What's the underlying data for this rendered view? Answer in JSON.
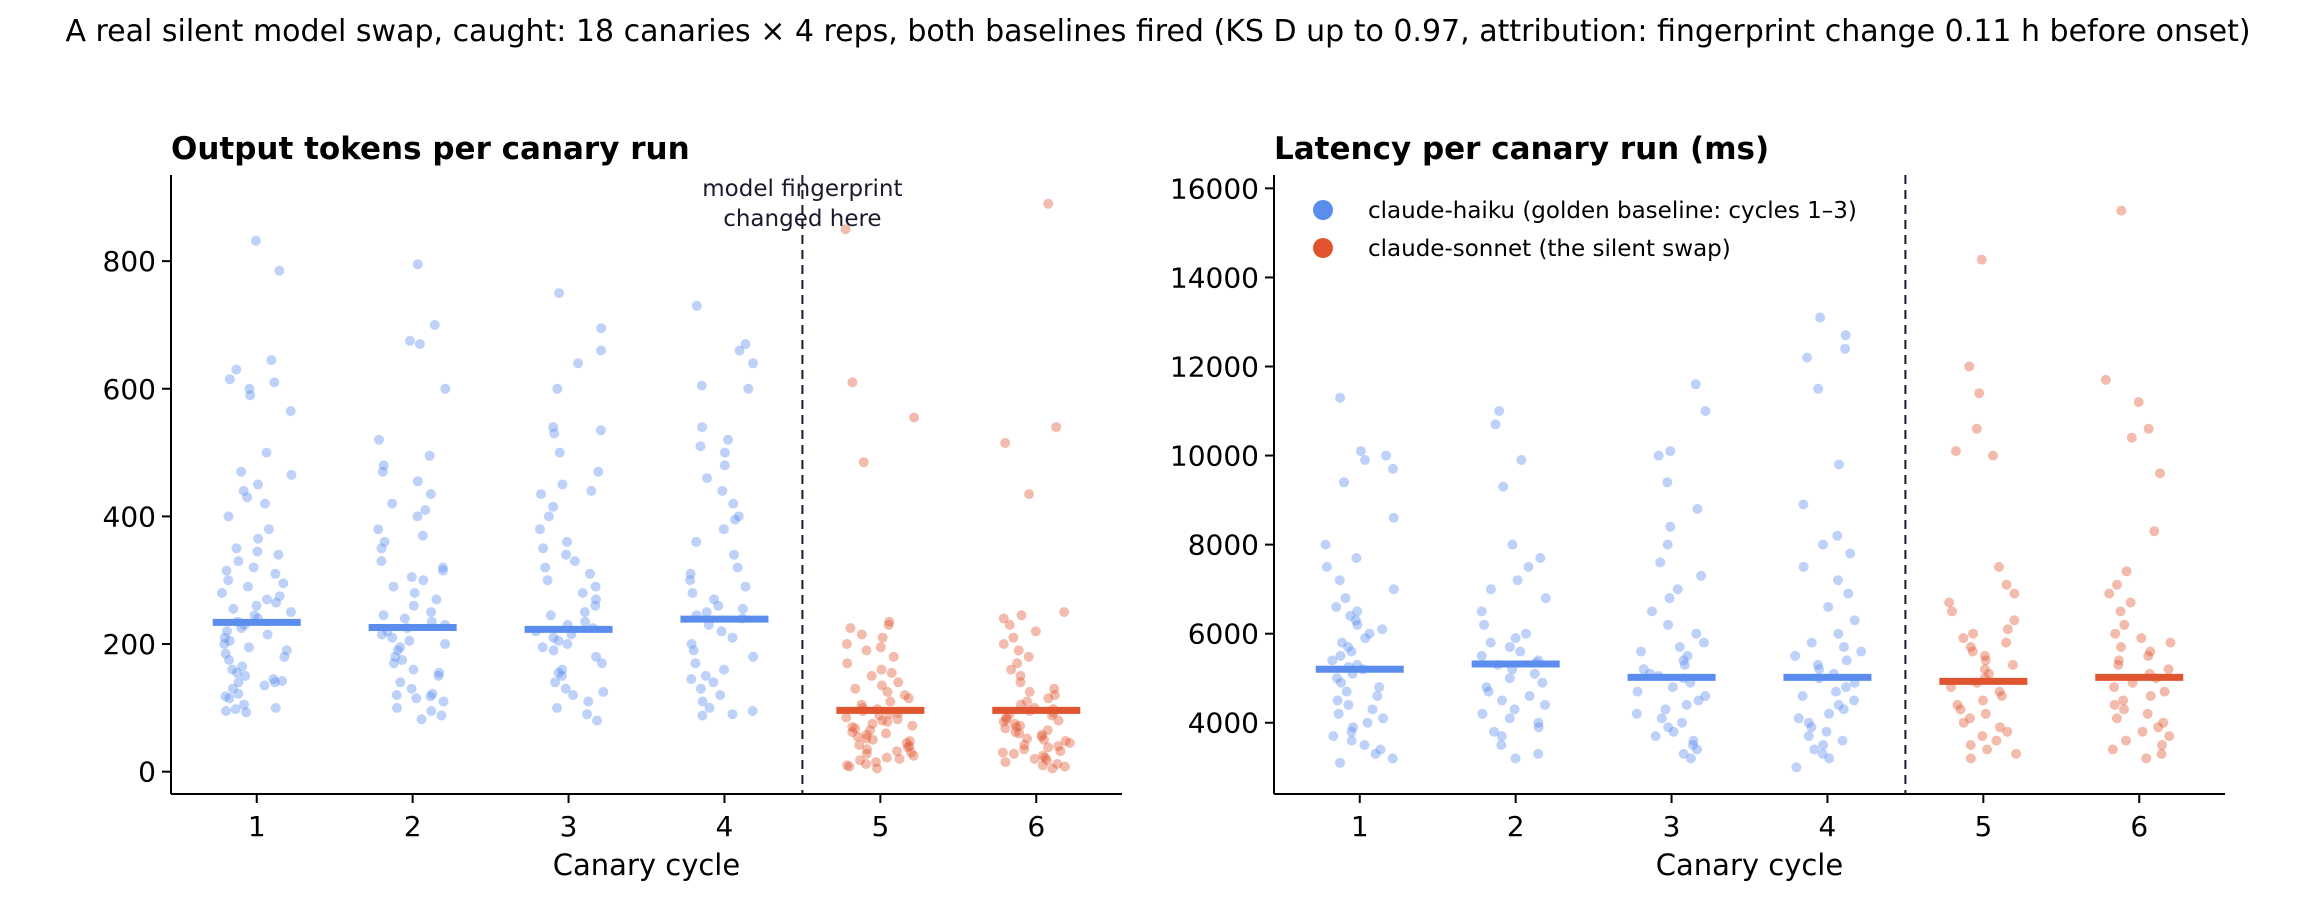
{
  "suptitle": "A real silent model swap, caught: 18 canaries × 4 reps, both baselines fired (KS D up to 0.97, attribution: fingerprint change 0.11 h before onset)",
  "colors": {
    "haiku": "#5b8def",
    "sonnet": "#e0552f",
    "axis": "#000000",
    "vline": "#1a1a2e"
  },
  "chart_data": [
    {
      "type": "scatter",
      "title": "Output tokens per canary run",
      "xlabel": "Canary cycle",
      "ylabel": "",
      "xlim": [
        0.45,
        6.55
      ],
      "ylim": [
        -35,
        935
      ],
      "x_ticks": [
        1,
        2,
        3,
        4,
        5,
        6
      ],
      "y_ticks": [
        0,
        200,
        400,
        600,
        800
      ],
      "change_x": 4.5,
      "annotation": "model fingerprint\nchanged here",
      "series": [
        {
          "name": "claude-haiku (golden baseline: cycles 1–3)",
          "color": "#5b8def",
          "cycles": [
            1,
            2,
            3,
            4
          ],
          "medians": [
            234,
            226,
            223,
            239
          ],
          "points": [
            [
              93,
              95,
              98,
              100,
              105,
              115,
              118,
              122,
              130,
              135,
              140,
              140,
              142,
              145,
              150,
              155,
              160,
              165,
              175,
              180,
              185,
              190,
              195,
              200,
              205,
              210,
              215,
              220,
              225,
              230,
              235,
              240,
              245,
              250,
              255,
              260,
              265,
              270,
              275,
              280,
              290,
              295,
              300,
              310,
              315,
              320,
              330,
              340,
              345,
              350,
              365,
              380,
              400,
              420,
              430,
              440,
              450,
              465,
              470,
              500,
              565,
              590,
              600,
              610,
              615,
              630,
              645,
              785,
              832
            ],
            [
              82,
              88,
              95,
              100,
              110,
              115,
              118,
              120,
              122,
              130,
              140,
              150,
              155,
              160,
              170,
              175,
              180,
              190,
              195,
              200,
              205,
              210,
              215,
              220,
              225,
              230,
              235,
              240,
              245,
              250,
              260,
              270,
              280,
              290,
              300,
              305,
              315,
              320,
              330,
              350,
              360,
              370,
              380,
              400,
              410,
              420,
              435,
              455,
              470,
              480,
              495,
              520,
              600,
              670,
              675,
              700,
              795
            ],
            [
              80,
              90,
              100,
              110,
              120,
              125,
              130,
              140,
              150,
              155,
              160,
              170,
              180,
              190,
              195,
              200,
              205,
              210,
              215,
              220,
              225,
              230,
              235,
              245,
              250,
              260,
              270,
              280,
              290,
              300,
              310,
              320,
              330,
              340,
              350,
              360,
              380,
              400,
              415,
              435,
              440,
              450,
              470,
              500,
              530,
              535,
              540,
              600,
              640,
              660,
              695,
              750
            ],
            [
              88,
              90,
              95,
              100,
              110,
              120,
              130,
              140,
              145,
              150,
              160,
              170,
              180,
              190,
              200,
              210,
              220,
              230,
              240,
              245,
              250,
              255,
              260,
              270,
              280,
              290,
              300,
              310,
              320,
              340,
              360,
              380,
              395,
              400,
              420,
              440,
              460,
              480,
              500,
              510,
              520,
              540,
              600,
              605,
              640,
              660,
              670,
              730
            ]
          ]
        },
        {
          "name": "claude-sonnet (the silent swap)",
          "color": "#e0552f",
          "cycles": [
            5,
            6
          ],
          "medians": [
            96,
            96
          ],
          "points": [
            [
              5,
              8,
              10,
              12,
              15,
              18,
              20,
              22,
              25,
              28,
              30,
              32,
              35,
              38,
              40,
              42,
              45,
              48,
              50,
              52,
              55,
              58,
              60,
              62,
              65,
              68,
              70,
              72,
              75,
              78,
              80,
              82,
              85,
              88,
              90,
              92,
              95,
              98,
              100,
              105,
              110,
              115,
              120,
              125,
              130,
              135,
              140,
              150,
              155,
              160,
              170,
              180,
              190,
              195,
              200,
              210,
              215,
              225,
              230,
              235,
              485,
              555,
              610,
              850
            ],
            [
              5,
              8,
              10,
              12,
              15,
              18,
              20,
              22,
              25,
              28,
              30,
              32,
              35,
              38,
              40,
              42,
              45,
              48,
              50,
              52,
              55,
              58,
              60,
              62,
              65,
              68,
              70,
              72,
              75,
              78,
              80,
              82,
              85,
              88,
              90,
              92,
              95,
              98,
              100,
              105,
              110,
              115,
              120,
              125,
              130,
              140,
              150,
              160,
              170,
              180,
              190,
              200,
              210,
              220,
              230,
              240,
              245,
              250,
              435,
              515,
              540,
              890
            ]
          ]
        }
      ]
    },
    {
      "type": "scatter",
      "title": "Latency per canary run (ms)",
      "xlabel": "Canary cycle",
      "ylabel": "",
      "xlim": [
        0.45,
        6.55
      ],
      "ylim": [
        2400,
        16300
      ],
      "x_ticks": [
        1,
        2,
        3,
        4,
        5,
        6
      ],
      "y_ticks": [
        4000,
        6000,
        8000,
        10000,
        12000,
        14000,
        16000
      ],
      "change_x": 4.5,
      "legend_loc": "top-left",
      "series": [
        {
          "name": "claude-haiku (golden baseline: cycles 1–3)",
          "color": "#5b8def",
          "cycles": [
            1,
            2,
            3,
            4
          ],
          "medians": [
            5200,
            5320,
            5020,
            5020
          ],
          "points": [
            [
              3100,
              3200,
              3300,
              3400,
              3500,
              3600,
              3700,
              3800,
              3900,
              4000,
              4100,
              4200,
              4300,
              4400,
              4500,
              4600,
              4700,
              4800,
              4900,
              5000,
              5100,
              5200,
              5250,
              5300,
              5400,
              5500,
              5600,
              5700,
              5800,
              5900,
              6000,
              6100,
              6200,
              6300,
              6400,
              6500,
              6600,
              6800,
              7000,
              7200,
              7500,
              7700,
              8000,
              8600,
              9400,
              9700,
              9900,
              10000,
              10100,
              11300
            ],
            [
              3200,
              3300,
              3500,
              3700,
              3800,
              3900,
              4000,
              4100,
              4200,
              4300,
              4400,
              4500,
              4600,
              4700,
              4800,
              4900,
              5000,
              5100,
              5200,
              5300,
              5350,
              5400,
              5500,
              5600,
              5700,
              5800,
              5900,
              6000,
              6200,
              6500,
              6800,
              7000,
              7200,
              7500,
              7700,
              8000,
              9300,
              9900,
              10700,
              11000
            ],
            [
              3200,
              3300,
              3400,
              3500,
              3600,
              3700,
              3800,
              3900,
              4000,
              4100,
              4200,
              4300,
              4400,
              4500,
              4600,
              4700,
              4800,
              4900,
              5000,
              5050,
              5100,
              5200,
              5300,
              5400,
              5500,
              5600,
              5700,
              5800,
              6000,
              6200,
              6500,
              6800,
              7000,
              7300,
              7600,
              8000,
              8400,
              8800,
              9400,
              10000,
              10100,
              11000,
              11600
            ],
            [
              3000,
              3200,
              3300,
              3400,
              3500,
              3600,
              3700,
              3800,
              3900,
              4000,
              4100,
              4200,
              4300,
              4400,
              4500,
              4600,
              4700,
              4800,
              4900,
              5000,
              5100,
              5200,
              5300,
              5400,
              5500,
              5600,
              5700,
              5800,
              6000,
              6300,
              6600,
              6900,
              7200,
              7500,
              7800,
              8000,
              8200,
              8900,
              9800,
              11500,
              12200,
              12400,
              12700,
              13100
            ]
          ]
        },
        {
          "name": "claude-sonnet (the silent swap)",
          "color": "#e0552f",
          "cycles": [
            5,
            6
          ],
          "medians": [
            4930,
            5020
          ],
          "points": [
            [
              3200,
              3300,
              3400,
              3500,
              3600,
              3700,
              3800,
              3900,
              4000,
              4100,
              4200,
              4300,
              4400,
              4500,
              4600,
              4700,
              4800,
              4900,
              5000,
              5100,
              5200,
              5300,
              5400,
              5500,
              5600,
              5700,
              5800,
              5900,
              6000,
              6100,
              6300,
              6500,
              6700,
              6900,
              7100,
              7500,
              10000,
              10100,
              10600,
              11400,
              12000,
              14400
            ],
            [
              3200,
              3300,
              3400,
              3500,
              3600,
              3700,
              3800,
              3900,
              4000,
              4100,
              4200,
              4300,
              4400,
              4500,
              4600,
              4700,
              4800,
              4900,
              5000,
              5100,
              5200,
              5300,
              5400,
              5500,
              5600,
              5700,
              5800,
              5900,
              6000,
              6200,
              6500,
              6700,
              6900,
              7100,
              7400,
              8300,
              9600,
              10400,
              10600,
              11200,
              11700,
              15500
            ]
          ]
        }
      ]
    }
  ]
}
